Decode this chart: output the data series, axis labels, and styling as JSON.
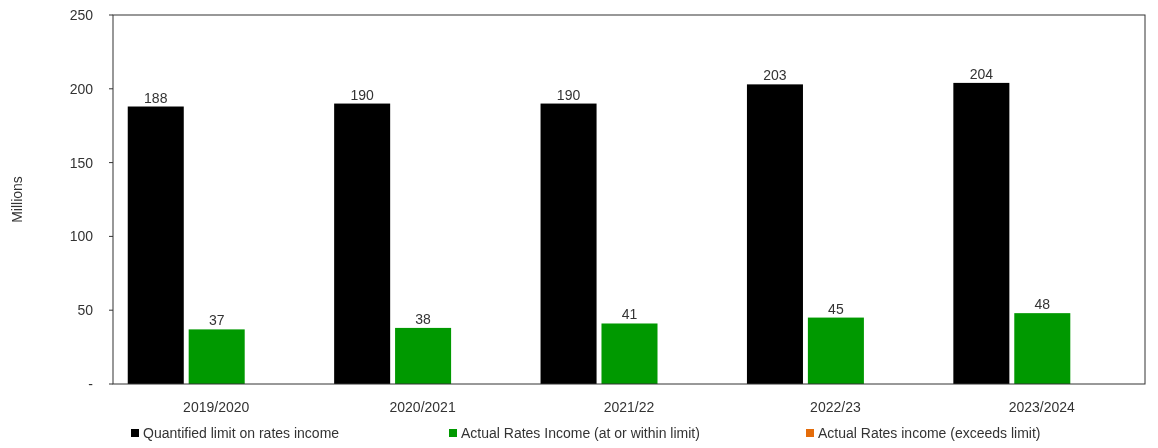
{
  "chart_data": {
    "type": "bar",
    "ylabel": "Millions",
    "categories": [
      "2019/2020",
      "2020/2021",
      "2021/22",
      "2022/23",
      "2023/2024"
    ],
    "series": [
      {
        "name": "Quantified limit on rates income",
        "color": "#000000",
        "values": [
          188,
          190,
          190,
          203,
          204
        ]
      },
      {
        "name": "Actual Rates Income (at or within limit)",
        "color": "#009900",
        "values": [
          37,
          38,
          41,
          45,
          48
        ]
      },
      {
        "name": "Actual Rates income (exceeds limit)",
        "color": "#e46c0a",
        "values": [
          null,
          null,
          null,
          null,
          null
        ]
      }
    ],
    "ylim": [
      0,
      250
    ],
    "yticks": [
      {
        "value": 0,
        "label": "-"
      },
      50,
      100,
      150,
      200,
      250
    ],
    "grid": false,
    "legend": "bottom",
    "data_labels": true
  }
}
